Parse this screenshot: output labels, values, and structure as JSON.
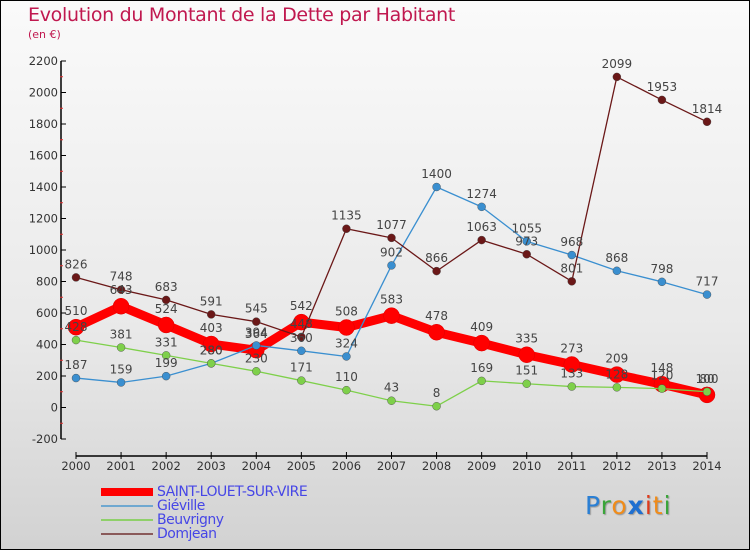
{
  "chart_data": {
    "type": "line",
    "title": "Evolution du Montant de la Dette par Habitant",
    "subtitle": "(en €)",
    "xlabel": "",
    "ylabel": "",
    "ylim": [
      -200,
      2200
    ],
    "yticks": [
      -200,
      0,
      200,
      400,
      600,
      800,
      1000,
      1200,
      1400,
      1600,
      1800,
      2000,
      2200
    ],
    "categories": [
      "2000",
      "2001",
      "2002",
      "2003",
      "2004",
      "2005",
      "2006",
      "2007",
      "2008",
      "2009",
      "2010",
      "2011",
      "2012",
      "2013",
      "2014"
    ],
    "grid": false,
    "legend_position": "bottom-left",
    "series": [
      {
        "name": "SAINT-LOUET-SUR-VIRE",
        "color": "#ff0000",
        "values": [
          510,
          643,
          524,
          403,
          364,
          542,
          508,
          583,
          478,
          409,
          335,
          273,
          209,
          148,
          80
        ]
      },
      {
        "name": "Giéville",
        "color": "#3a8fd0",
        "values": [
          187,
          159,
          199,
          280,
          394,
          360,
          324,
          902,
          1400,
          1274,
          1055,
          968,
          868,
          798,
          717
        ]
      },
      {
        "name": "Beuvrigny",
        "color": "#7ed04a",
        "values": [
          428,
          381,
          331,
          280,
          230,
          171,
          110,
          43,
          8,
          169,
          151,
          133,
          128,
          120,
          100
        ]
      },
      {
        "name": "Domjean",
        "color": "#6b1818",
        "values": [
          826,
          748,
          683,
          591,
          545,
          448,
          1135,
          1077,
          866,
          1063,
          973,
          801,
          2099,
          1953,
          1814
        ]
      }
    ]
  },
  "legend": {
    "items": [
      {
        "label": "SAINT-LOUET-SUR-VIRE",
        "color": "#ff0000"
      },
      {
        "label": "Giéville",
        "color": "#6fa8d0"
      },
      {
        "label": "Beuvrigny",
        "color": "#8fd06a"
      },
      {
        "label": "Domjean",
        "color": "#8a5a5a"
      }
    ]
  },
  "logo": {
    "letters": [
      {
        "ch": "P",
        "color": "#2a7fd4"
      },
      {
        "ch": "r",
        "color": "#3aa53a"
      },
      {
        "ch": "o",
        "color": "#f08c1a"
      },
      {
        "ch": "x",
        "color": "#1f6fd0"
      },
      {
        "ch": "i",
        "color": "#e03a1a"
      },
      {
        "ch": "t",
        "color": "#f08c1a"
      },
      {
        "ch": "i",
        "color": "#3aa53a"
      }
    ]
  }
}
